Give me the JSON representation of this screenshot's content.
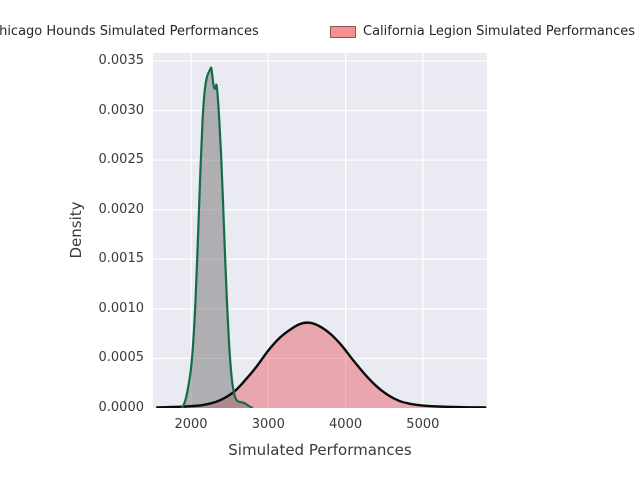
{
  "legend": {
    "position": "top",
    "items": [
      {
        "label": "Chicago Hounds Simulated Performances",
        "swatch_fill": "#b3b3b8",
        "swatch_border": "#156d46"
      },
      {
        "label": "California Legion Simulated Performances",
        "swatch_fill": "#f58f91",
        "swatch_border": "#8a5a5e"
      }
    ]
  },
  "chart_data": {
    "type": "area",
    "subtype": "kde-density",
    "title": "",
    "xlabel": "Simulated Performances",
    "ylabel": "Density",
    "x_ticks": [
      2000,
      3000,
      4000,
      5000
    ],
    "y_ticks": [
      0.0,
      0.0005,
      0.001,
      0.0015,
      0.002,
      0.0025,
      0.003,
      0.0035
    ],
    "xlim": [
      1508,
      5830
    ],
    "ylim": [
      0,
      0.00358
    ],
    "grid": true,
    "plot_bg": "#eaeaf2",
    "grid_color": "#ffffff",
    "legend_position": "top",
    "series": [
      {
        "name": "Chicago Hounds Simulated Performances",
        "line_color": "#156d46",
        "fill_color": "#666666",
        "fill_opacity": 0.45,
        "peak_x": 2260,
        "peak_density": 0.0034,
        "points": [
          [
            1880,
            0.0
          ],
          [
            1910,
            4e-05
          ],
          [
            1940,
            0.00012
          ],
          [
            1970,
            0.00024
          ],
          [
            2000,
            0.0004
          ],
          [
            2030,
            0.00068
          ],
          [
            2060,
            0.00112
          ],
          [
            2090,
            0.00172
          ],
          [
            2120,
            0.00236
          ],
          [
            2150,
            0.00291
          ],
          [
            2180,
            0.00322
          ],
          [
            2210,
            0.00335
          ],
          [
            2245,
            0.00341
          ],
          [
            2262,
            0.00343
          ],
          [
            2278,
            0.00334
          ],
          [
            2295,
            0.00324
          ],
          [
            2315,
            0.00322
          ],
          [
            2330,
            0.00326
          ],
          [
            2345,
            0.00315
          ],
          [
            2365,
            0.00291
          ],
          [
            2390,
            0.00254
          ],
          [
            2415,
            0.00206
          ],
          [
            2440,
            0.00154
          ],
          [
            2465,
            0.00107
          ],
          [
            2490,
            0.00068
          ],
          [
            2515,
            0.0004
          ],
          [
            2540,
            0.00022
          ],
          [
            2570,
            0.00011
          ],
          [
            2600,
            7e-05
          ],
          [
            2640,
            6e-05
          ],
          [
            2690,
            5e-05
          ],
          [
            2730,
            3e-05
          ],
          [
            2770,
            1e-05
          ],
          [
            2800,
            0.0
          ]
        ]
      },
      {
        "name": "California Legion Simulated Performances",
        "line_color": "#0a0a0a",
        "fill_color": "#e8414a",
        "fill_opacity": 0.4,
        "peak_x": 3480,
        "peak_density": 0.00086,
        "points": [
          [
            1550,
            6e-06
          ],
          [
            1750,
            1e-05
          ],
          [
            1950,
            1.6e-05
          ],
          [
            2150,
            3e-05
          ],
          [
            2350,
            7e-05
          ],
          [
            2550,
            0.00016
          ],
          [
            2700,
            0.00028
          ],
          [
            2850,
            0.00042
          ],
          [
            3000,
            0.00058
          ],
          [
            3150,
            0.00071
          ],
          [
            3300,
            0.0008
          ],
          [
            3420,
            0.00085
          ],
          [
            3530,
            0.00086
          ],
          [
            3650,
            0.00083
          ],
          [
            3800,
            0.00075
          ],
          [
            3950,
            0.00063
          ],
          [
            4100,
            0.00048
          ],
          [
            4250,
            0.00034
          ],
          [
            4400,
            0.00022
          ],
          [
            4550,
            0.00013
          ],
          [
            4700,
            7e-05
          ],
          [
            4850,
            4e-05
          ],
          [
            5000,
            2.5e-05
          ],
          [
            5200,
            1.5e-05
          ],
          [
            5400,
            1e-05
          ],
          [
            5600,
            7e-06
          ],
          [
            5820,
            6e-06
          ]
        ]
      }
    ]
  }
}
